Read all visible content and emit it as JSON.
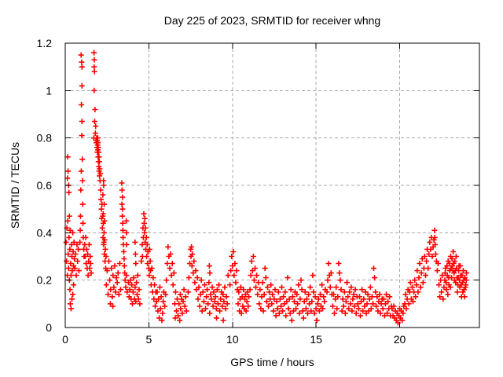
{
  "title": "Day 225 of 2023, SRMTID for receiver whng",
  "chart_data": {
    "type": "scatter",
    "title": "Day 225 of 2023, SRMTID for receiver whng",
    "xlabel": "GPS time / hours",
    "ylabel": "SRMTID / TECUs",
    "xlim": [
      0,
      24.77
    ],
    "ylim": [
      0,
      1.2
    ],
    "xticks": [
      0,
      5,
      10,
      15,
      20
    ],
    "yticks": [
      0,
      0.2,
      0.4,
      0.6,
      0.8,
      1,
      1.2
    ],
    "grid": true,
    "legend": "none",
    "marker": "plus",
    "marker_color": "#ff0000",
    "points_format": "flat [x1,y1,x2,y2,...] hours vs TECUs",
    "points": [
      0.05,
      0.36,
      0.075,
      0.28,
      0.1,
      0.42,
      0.125,
      0.22,
      0.15,
      0.45,
      0.175,
      0.31,
      0.2,
      0.25,
      0.225,
      0.38,
      0.25,
      0.2,
      0.275,
      0.33,
      0.3,
      0.41,
      0.325,
      0.27,
      0.35,
      0.22,
      0.375,
      0.35,
      0.4,
      0.3,
      0.425,
      0.24,
      0.45,
      0.4,
      0.475,
      0.32,
      0.5,
      0.26,
      0.525,
      0.36,
      0.55,
      0.29,
      0.13,
      0.63,
      0.15,
      0.72,
      0.17,
      0.66,
      0.2,
      0.6,
      0.22,
      0.57,
      0.25,
      0.47,
      0.28,
      0.16,
      0.3,
      0.1,
      0.35,
      0.08,
      0.4,
      0.12,
      0.45,
      0.14,
      0.5,
      0.18,
      0.58,
      0.25,
      0.62,
      0.31,
      0.66,
      0.22,
      0.7,
      0.35,
      0.74,
      0.28,
      0.78,
      0.33,
      0.82,
      0.24,
      0.95,
      1.15,
      0.98,
      1.12,
      1.0,
      1.1,
      1.0,
      1.02,
      0.97,
      0.94,
      1.0,
      0.87,
      0.99,
      0.81,
      1.02,
      0.71,
      0.96,
      0.66,
      1.04,
      0.62,
      0.93,
      0.58,
      1.05,
      0.52,
      0.91,
      0.47,
      1.06,
      0.44,
      0.88,
      0.36,
      0.9,
      0.41,
      1.08,
      0.38,
      1.11,
      0.33,
      1.13,
      0.3,
      1.16,
      0.35,
      1.19,
      0.3,
      1.22,
      0.38,
      1.25,
      0.27,
      1.28,
      0.33,
      1.31,
      0.25,
      1.34,
      0.31,
      1.37,
      0.22,
      1.4,
      0.28,
      1.43,
      0.35,
      1.46,
      0.25,
      1.49,
      0.3,
      1.52,
      0.27,
      1.55,
      0.23,
      1.72,
      1.16,
      1.74,
      1.13,
      1.73,
      1.1,
      1.75,
      1.08,
      1.73,
      1.0,
      1.76,
      0.87,
      1.78,
      0.92,
      1.71,
      0.8,
      1.8,
      0.82,
      1.82,
      0.85,
      1.84,
      0.79,
      1.86,
      0.78,
      1.88,
      0.8,
      1.9,
      0.76,
      1.91,
      0.79,
      1.92,
      0.74,
      1.93,
      0.77,
      1.94,
      0.8,
      1.95,
      0.75,
      1.96,
      0.78,
      1.97,
      0.72,
      1.98,
      0.76,
      1.99,
      0.7,
      2.0,
      0.74,
      2.01,
      0.68,
      2.02,
      0.72,
      2.03,
      0.66,
      2.04,
      0.7,
      2.05,
      0.64,
      2.06,
      0.67,
      2.08,
      0.62,
      2.1,
      0.65,
      2.12,
      0.58,
      2.14,
      0.54,
      2.16,
      0.5,
      2.18,
      0.46,
      2.2,
      0.52,
      2.22,
      0.42,
      2.24,
      0.47,
      2.26,
      0.38,
      2.28,
      0.44,
      2.3,
      0.35,
      2.32,
      0.4,
      2.34,
      0.31,
      2.36,
      0.37,
      2.38,
      0.28,
      2.4,
      0.33,
      2.42,
      0.25,
      2.44,
      0.3,
      2.25,
      0.56,
      2.3,
      0.6,
      2.27,
      0.48,
      2.33,
      0.52,
      2.29,
      0.62,
      2.31,
      0.36,
      2.35,
      0.45,
      2.46,
      0.18,
      2.51,
      0.24,
      2.56,
      0.14,
      2.61,
      0.28,
      2.66,
      0.2,
      2.71,
      0.16,
      2.76,
      0.25,
      2.81,
      0.13,
      2.86,
      0.22,
      2.91,
      0.17,
      2.96,
      0.26,
      3.01,
      0.15,
      3.06,
      0.21,
      3.11,
      0.19,
      3.16,
      0.23,
      3.21,
      0.14,
      3.26,
      0.27,
      3.31,
      0.16,
      2.7,
      0.1,
      2.85,
      0.09,
      3.38,
      0.61,
      3.4,
      0.58,
      3.42,
      0.55,
      3.39,
      0.52,
      3.43,
      0.5,
      3.41,
      0.47,
      3.44,
      0.44,
      3.45,
      0.41,
      3.46,
      0.38,
      3.48,
      0.35,
      3.5,
      0.32,
      3.52,
      0.29,
      3.54,
      0.26,
      3.56,
      0.23,
      3.65,
      0.45,
      3.66,
      0.4,
      3.67,
      0.35,
      3.58,
      0.2,
      3.62,
      0.17,
      3.66,
      0.22,
      3.7,
      0.15,
      3.78,
      0.19,
      3.82,
      0.13,
      3.86,
      0.16,
      3.9,
      0.2,
      3.94,
      0.12,
      3.98,
      0.18,
      4.02,
      0.1,
      4.06,
      0.15,
      4.1,
      0.21,
      4.14,
      0.12,
      4.18,
      0.17,
      4.22,
      0.11,
      4.26,
      0.19,
      4.3,
      0.14,
      4.34,
      0.22,
      4.38,
      0.12,
      4.42,
      0.16,
      4.46,
      0.1,
      4.18,
      0.36,
      4.2,
      0.31,
      4.22,
      0.27,
      4.55,
      0.28,
      4.6,
      0.35,
      4.62,
      0.3,
      4.65,
      0.42,
      4.67,
      0.38,
      4.7,
      0.48,
      4.72,
      0.44,
      4.74,
      0.4,
      4.76,
      0.46,
      4.78,
      0.36,
      4.8,
      0.42,
      4.82,
      0.33,
      4.85,
      0.38,
      4.87,
      0.3,
      4.9,
      0.35,
      4.92,
      0.27,
      4.95,
      0.32,
      5.0,
      0.25,
      5.02,
      0.22,
      5.05,
      0.33,
      5.08,
      0.28,
      5.1,
      0.24,
      5.14,
      0.18,
      5.18,
      0.25,
      5.22,
      0.15,
      5.26,
      0.21,
      5.3,
      0.12,
      5.34,
      0.18,
      5.38,
      0.09,
      5.42,
      0.15,
      5.46,
      0.11,
      5.5,
      0.15,
      5.54,
      0.07,
      5.58,
      0.12,
      5.62,
      0.04,
      5.66,
      0.17,
      5.7,
      0.08,
      5.74,
      0.13,
      5.78,
      0.03,
      5.82,
      0.06,
      5.86,
      0.11,
      5.9,
      0.15,
      5.95,
      0.09,
      6.0,
      0.14,
      6.05,
      0.2,
      6.1,
      0.27,
      6.15,
      0.34,
      6.2,
      0.3,
      6.25,
      0.25,
      6.3,
      0.31,
      6.35,
      0.22,
      6.4,
      0.27,
      6.45,
      0.18,
      6.5,
      0.23,
      6.55,
      0.1,
      6.58,
      0.04,
      6.6,
      0.15,
      6.65,
      0.07,
      6.7,
      0.12,
      6.75,
      0.05,
      6.8,
      0.1,
      6.85,
      0.03,
      6.88,
      0.14,
      6.9,
      0.08,
      6.95,
      0.12,
      7.0,
      0.06,
      7.05,
      0.11,
      7.1,
      0.16,
      7.15,
      0.09,
      7.2,
      0.13,
      7.25,
      0.07,
      7.35,
      0.15,
      7.4,
      0.21,
      7.45,
      0.27,
      7.5,
      0.33,
      7.52,
      0.3,
      7.55,
      0.34,
      7.58,
      0.26,
      7.6,
      0.31,
      7.65,
      0.23,
      7.7,
      0.28,
      7.75,
      0.19,
      7.8,
      0.24,
      7.85,
      0.16,
      7.9,
      0.21,
      7.94,
      0.12,
      7.99,
      0.17,
      8.04,
      0.09,
      8.09,
      0.14,
      8.14,
      0.2,
      8.19,
      0.07,
      8.24,
      0.15,
      8.29,
      0.11,
      8.34,
      0.18,
      8.39,
      0.08,
      8.44,
      0.13,
      8.49,
      0.16,
      8.54,
      0.1,
      8.59,
      0.19,
      8.62,
      0.26,
      8.65,
      0.23,
      8.64,
      0.06,
      8.69,
      0.14,
      8.74,
      0.12,
      8.79,
      0.17,
      8.84,
      0.09,
      8.89,
      0.15,
      8.94,
      0.11,
      8.99,
      0.13,
      9.04,
      0.08,
      9.05,
      0.04,
      9.09,
      0.16,
      9.14,
      0.1,
      9.19,
      0.18,
      9.24,
      0.07,
      9.29,
      0.12,
      9.34,
      0.15,
      9.39,
      0.09,
      9.44,
      0.14,
      9.45,
      0.03,
      9.49,
      0.11,
      9.54,
      0.17,
      9.59,
      0.08,
      9.64,
      0.13,
      9.69,
      0.1,
      9.74,
      0.22,
      9.85,
      0.18,
      9.9,
      0.24,
      9.95,
      0.3,
      10.0,
      0.26,
      10.05,
      0.32,
      10.1,
      0.22,
      10.15,
      0.27,
      10.2,
      0.19,
      10.25,
      0.24,
      10.3,
      0.16,
      10.34,
      0.1,
      10.38,
      0.15,
      10.42,
      0.07,
      10.46,
      0.12,
      10.5,
      0.17,
      10.54,
      0.06,
      10.58,
      0.13,
      10.62,
      0.09,
      10.66,
      0.16,
      10.7,
      0.08,
      10.74,
      0.12,
      10.78,
      0.14,
      10.82,
      0.07,
      10.86,
      0.11,
      10.9,
      0.15,
      10.94,
      0.09,
      10.98,
      0.13,
      11.05,
      0.16,
      11.1,
      0.22,
      11.15,
      0.28,
      11.2,
      0.24,
      11.25,
      0.3,
      11.3,
      0.2,
      11.35,
      0.25,
      11.4,
      0.17,
      11.45,
      0.22,
      11.5,
      0.14,
      11.55,
      0.19,
      11.6,
      0.1,
      11.65,
      0.16,
      11.7,
      0.08,
      11.75,
      0.13,
      11.8,
      0.19,
      11.85,
      0.07,
      11.9,
      0.14,
      11.95,
      0.25,
      12.0,
      0.21,
      12.05,
      0.11,
      12.1,
      0.17,
      12.15,
      0.09,
      12.2,
      0.15,
      12.25,
      0.12,
      12.3,
      0.18,
      12.35,
      0.1,
      12.4,
      0.14,
      12.45,
      0.07,
      12.5,
      0.12,
      12.55,
      0.16,
      12.6,
      0.05,
      12.65,
      0.11,
      12.7,
      0.08,
      12.75,
      0.15,
      12.8,
      0.06,
      12.85,
      0.12,
      12.9,
      0.09,
      12.95,
      0.17,
      13.0,
      0.07,
      13.05,
      0.13,
      13.1,
      0.1,
      13.15,
      0.15,
      13.2,
      0.05,
      13.25,
      0.11,
      13.3,
      0.21,
      13.35,
      0.08,
      13.4,
      0.12,
      13.45,
      0.06,
      13.5,
      0.16,
      13.55,
      0.03,
      13.6,
      0.13,
      13.65,
      0.07,
      13.7,
      0.11,
      13.75,
      0.15,
      13.8,
      0.08,
      13.85,
      0.14,
      13.9,
      0.1,
      13.95,
      0.18,
      14.0,
      0.06,
      14.05,
      0.12,
      14.1,
      0.2,
      14.15,
      0.16,
      14.2,
      0.07,
      14.25,
      0.04,
      14.3,
      0.11,
      14.35,
      0.15,
      14.4,
      0.08,
      14.45,
      0.12,
      14.5,
      0.06,
      14.55,
      0.14,
      14.6,
      0.1,
      14.65,
      0.17,
      14.7,
      0.07,
      14.75,
      0.11,
      14.8,
      0.22,
      14.85,
      0.15,
      14.9,
      0.06,
      14.95,
      0.13,
      15.0,
      0.08,
      15.05,
      0.03,
      15.1,
      0.1,
      15.15,
      0.12,
      15.2,
      0.07,
      15.25,
      0.14,
      15.3,
      0.09,
      15.35,
      0.18,
      15.4,
      0.08,
      15.45,
      0.13,
      15.5,
      0.11,
      15.55,
      0.16,
      15.65,
      0.15,
      15.7,
      0.2,
      15.75,
      0.27,
      15.8,
      0.22,
      15.85,
      0.17,
      15.9,
      0.23,
      15.95,
      0.14,
      16.0,
      0.09,
      16.05,
      0.14,
      16.1,
      0.06,
      16.15,
      0.12,
      16.2,
      0.17,
      16.25,
      0.08,
      16.3,
      0.13,
      16.35,
      0.27,
      16.4,
      0.23,
      16.45,
      0.2,
      16.5,
      0.16,
      16.55,
      0.07,
      16.6,
      0.12,
      16.65,
      0.09,
      16.7,
      0.15,
      16.75,
      0.06,
      16.8,
      0.11,
      16.85,
      0.19,
      16.9,
      0.13,
      16.95,
      0.08,
      17.0,
      0.15,
      17.05,
      0.1,
      17.1,
      0.17,
      17.15,
      0.07,
      17.2,
      0.12,
      17.25,
      0.14,
      17.3,
      0.09,
      17.35,
      0.16,
      17.4,
      0.06,
      17.45,
      0.13,
      17.5,
      0.1,
      17.55,
      0.08,
      17.6,
      0.13,
      17.65,
      0.05,
      17.7,
      0.11,
      17.75,
      0.16,
      17.8,
      0.07,
      17.85,
      0.12,
      17.9,
      0.09,
      17.95,
      0.15,
      18.0,
      0.06,
      18.05,
      0.1,
      18.1,
      0.14,
      18.15,
      0.07,
      18.2,
      0.12,
      18.25,
      0.17,
      18.3,
      0.08,
      18.35,
      0.13,
      18.4,
      0.1,
      18.45,
      0.25,
      18.5,
      0.21,
      18.55,
      0.15,
      18.6,
      0.09,
      18.65,
      0.13,
      18.7,
      0.07,
      18.75,
      0.11,
      18.8,
      0.14,
      18.85,
      0.06,
      18.9,
      0.1,
      18.95,
      0.12,
      19.0,
      0.08,
      19.05,
      0.12,
      19.1,
      0.05,
      19.15,
      0.1,
      19.2,
      0.14,
      19.25,
      0.06,
      19.3,
      0.11,
      19.35,
      0.08,
      19.4,
      0.13,
      19.45,
      0.05,
      19.5,
      0.09,
      19.55,
      0.08,
      19.6,
      0.05,
      19.65,
      0.09,
      19.7,
      0.04,
      19.75,
      0.07,
      19.8,
      0.03,
      19.85,
      0.06,
      19.9,
      0.02,
      19.95,
      0.05,
      20.0,
      0.08,
      20.05,
      0.04,
      20.1,
      0.07,
      20.15,
      0.03,
      20.2,
      0.06,
      20.25,
      0.09,
      20.3,
      0.1,
      20.35,
      0.14,
      20.4,
      0.08,
      20.45,
      0.12,
      20.5,
      0.16,
      20.55,
      0.1,
      20.6,
      0.15,
      20.65,
      0.19,
      20.7,
      0.12,
      20.75,
      0.17,
      20.8,
      0.11,
      20.85,
      0.15,
      20.9,
      0.2,
      20.95,
      0.13,
      21.0,
      0.18,
      21.05,
      0.24,
      21.1,
      0.15,
      21.15,
      0.21,
      21.2,
      0.27,
      21.25,
      0.17,
      21.3,
      0.23,
      21.35,
      0.29,
      21.4,
      0.19,
      21.45,
      0.25,
      21.5,
      0.3,
      21.55,
      0.22,
      21.6,
      0.28,
      21.65,
      0.33,
      21.7,
      0.25,
      21.75,
      0.31,
      21.8,
      0.36,
      21.85,
      0.33,
      21.9,
      0.38,
      21.95,
      0.3,
      22.0,
      0.34,
      22.05,
      0.37,
      22.08,
      0.41,
      22.1,
      0.38,
      22.12,
      0.35,
      22.15,
      0.31,
      22.2,
      0.28,
      22.25,
      0.24,
      22.3,
      0.27,
      22.35,
      0.18,
      22.4,
      0.13,
      22.45,
      0.2,
      22.5,
      0.15,
      22.55,
      0.22,
      22.6,
      0.12,
      22.65,
      0.17,
      22.7,
      0.2,
      22.72,
      0.23,
      22.75,
      0.25,
      22.78,
      0.19,
      22.8,
      0.16,
      22.83,
      0.26,
      22.85,
      0.22,
      22.88,
      0.14,
      22.9,
      0.28,
      22.93,
      0.21,
      22.95,
      0.18,
      22.98,
      0.27,
      23.0,
      0.24,
      23.03,
      0.17,
      23.05,
      0.3,
      23.08,
      0.25,
      23.1,
      0.21,
      23.13,
      0.29,
      23.15,
      0.26,
      23.18,
      0.24,
      23.2,
      0.32,
      23.23,
      0.27,
      23.25,
      0.23,
      23.28,
      0.2,
      23.3,
      0.28,
      23.33,
      0.24,
      23.35,
      0.19,
      23.38,
      0.3,
      23.4,
      0.25,
      23.43,
      0.21,
      23.45,
      0.15,
      23.48,
      0.18,
      23.5,
      0.21,
      23.53,
      0.24,
      23.55,
      0.26,
      23.58,
      0.2,
      23.6,
      0.17,
      23.63,
      0.26,
      23.65,
      0.22,
      23.68,
      0.18,
      23.7,
      0.13,
      23.73,
      0.22,
      23.75,
      0.19,
      23.78,
      0.15,
      23.8,
      0.24,
      23.83,
      0.2,
      23.85,
      0.16,
      23.88,
      0.13,
      23.9,
      0.21,
      23.93,
      0.17,
      23.95,
      0.18,
      23.98,
      0.2,
      24.0,
      0.23
    ]
  },
  "colors": {
    "marker": "#ff0000",
    "grid": "#a8a8a8",
    "axis": "#000000",
    "background": "#ffffff"
  }
}
